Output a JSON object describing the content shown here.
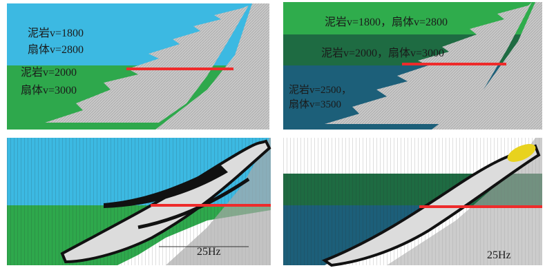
{
  "panels": [
    {
      "labels": [
        "泥岩v=1800",
        "扇体v=2800",
        "泥岩v=2000",
        "扇体v=3000"
      ]
    },
    {
      "labels": [
        "泥岩v=1800，扇体v=2800",
        "泥岩v=2000，扇体v=3000",
        "泥岩v=2500，",
        "扇体v=3500"
      ]
    },
    {
      "labels": [
        "25Hz"
      ]
    },
    {
      "labels": [
        "25Hz"
      ]
    }
  ]
}
